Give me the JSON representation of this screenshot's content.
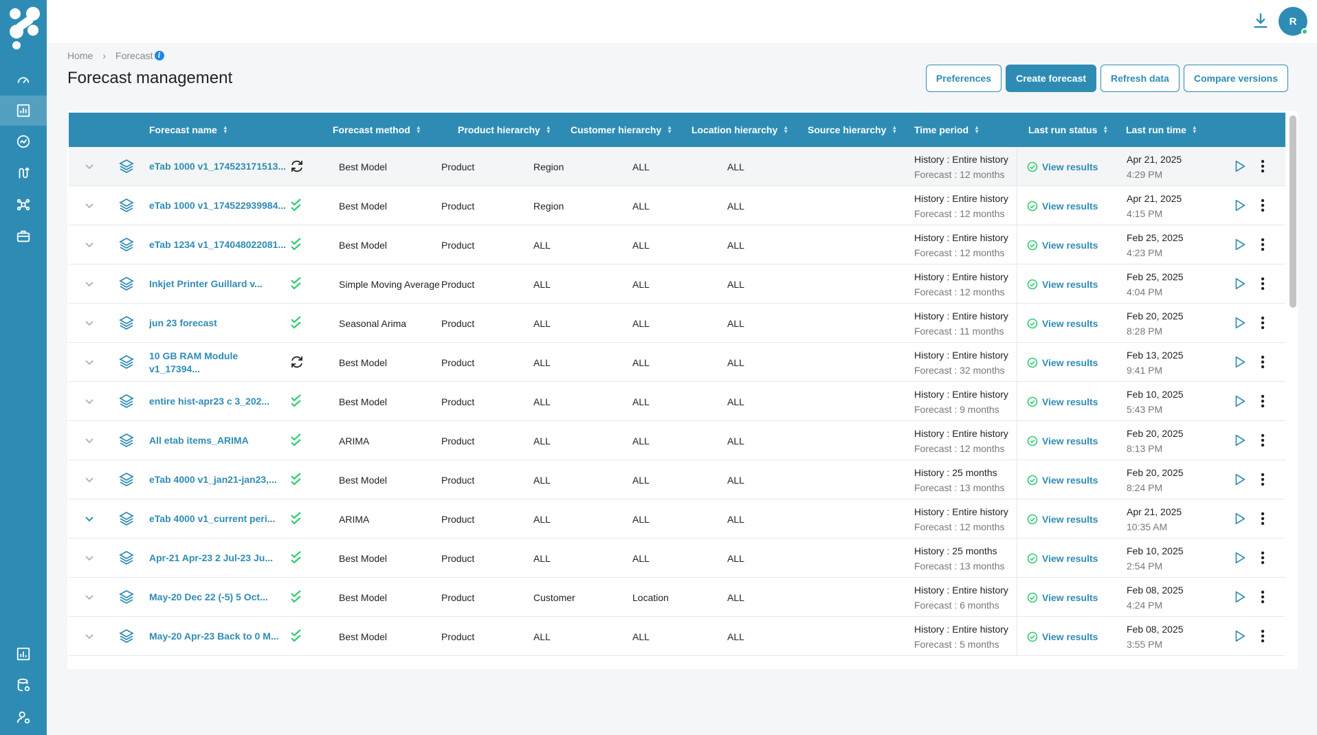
{
  "colors": {
    "brand": "#2e8cb4",
    "success": "#2ecc71",
    "info": "#1e88e5"
  },
  "sidebar": {
    "items": [
      {
        "icon": "gauge-icon"
      },
      {
        "icon": "bar-chart-icon"
      },
      {
        "icon": "trend-icon"
      },
      {
        "icon": "route-icon"
      },
      {
        "icon": "network-icon"
      },
      {
        "icon": "briefcase-icon"
      },
      {
        "icon": "report-icon"
      },
      {
        "icon": "database-settings-icon"
      },
      {
        "icon": "user-settings-icon"
      }
    ]
  },
  "header": {
    "avatar_initial": "R"
  },
  "breadcrumb": {
    "home": "Home",
    "current": "Forecast",
    "info": "i"
  },
  "page": {
    "title": "Forecast management"
  },
  "actions": {
    "preferences": "Preferences",
    "create": "Create forecast",
    "refresh": "Refresh data",
    "compare": "Compare versions"
  },
  "table": {
    "columns": {
      "name": "Forecast name",
      "method": "Forecast method",
      "product": "Product hierarchy",
      "customer": "Customer hierarchy",
      "location": "Location hierarchy",
      "source": "Source hierarchy",
      "time": "Time period",
      "status": "Last run status",
      "runtime": "Last run time"
    },
    "rows": [
      {
        "name": "eTab 1000 v1_174523171513...",
        "sync": "refresh",
        "method": "Best Model",
        "product": "Product",
        "customer": "Region",
        "location": "ALL",
        "source": "ALL",
        "history": "History : Entire history",
        "forecast": "Forecast : 12 months",
        "status": "View results",
        "date": "Apr 21, 2025",
        "time": "4:29 PM",
        "expanded": false
      },
      {
        "name": "eTab 1000 v1_174522939984...",
        "sync": "done",
        "method": "Best Model",
        "product": "Product",
        "customer": "Region",
        "location": "ALL",
        "source": "ALL",
        "history": "History : Entire history",
        "forecast": "Forecast : 12 months",
        "status": "View results",
        "date": "Apr 21, 2025",
        "time": "4:15 PM",
        "expanded": false
      },
      {
        "name": "eTab 1234 v1_174048022081...",
        "sync": "done",
        "method": "Best Model",
        "product": "Product",
        "customer": "ALL",
        "location": "ALL",
        "source": "ALL",
        "history": "History : Entire history",
        "forecast": "Forecast : 12 months",
        "status": "View results",
        "date": "Feb 25, 2025",
        "time": "4:23 PM",
        "expanded": false
      },
      {
        "name": "Inkjet Printer Guillard v...",
        "sync": "done",
        "method": "Simple Moving Average",
        "product": "Product",
        "customer": "ALL",
        "location": "ALL",
        "source": "ALL",
        "history": "History : Entire history",
        "forecast": "Forecast : 12 months",
        "status": "View results",
        "date": "Feb 25, 2025",
        "time": "4:04 PM",
        "expanded": false
      },
      {
        "name": "jun 23 forecast",
        "sync": "done",
        "method": "Seasonal Arima",
        "product": "Product",
        "customer": "ALL",
        "location": "ALL",
        "source": "ALL",
        "history": "History : Entire history",
        "forecast": "Forecast : 11 months",
        "status": "View results",
        "date": "Feb 20, 2025",
        "time": "8:28 PM",
        "expanded": false
      },
      {
        "name": "10 GB RAM Module v1_17394...",
        "sync": "refresh",
        "method": "Best Model",
        "product": "Product",
        "customer": "ALL",
        "location": "ALL",
        "source": "ALL",
        "history": "History : Entire history",
        "forecast": "Forecast : 32 months",
        "status": "View results",
        "date": "Feb 13, 2025",
        "time": "9:41 PM",
        "expanded": false
      },
      {
        "name": "entire hist-apr23 c 3_202...",
        "sync": "done",
        "method": "Best Model",
        "product": "Product",
        "customer": "ALL",
        "location": "ALL",
        "source": "ALL",
        "history": "History : Entire history",
        "forecast": "Forecast : 9 months",
        "status": "View results",
        "date": "Feb 10, 2025",
        "time": "5:43 PM",
        "expanded": false
      },
      {
        "name": "All etab items_ARIMA",
        "sync": "done",
        "method": "ARIMA",
        "product": "Product",
        "customer": "ALL",
        "location": "ALL",
        "source": "ALL",
        "history": "History : Entire history",
        "forecast": "Forecast : 12 months",
        "status": "View results",
        "date": "Feb 20, 2025",
        "time": "8:13 PM",
        "expanded": false
      },
      {
        "name": "eTab 4000 v1_jan21-jan23,...",
        "sync": "done",
        "method": "Best Model",
        "product": "Product",
        "customer": "ALL",
        "location": "ALL",
        "source": "ALL",
        "history": "History : 25 months",
        "forecast": "Forecast : 13 months",
        "status": "View results",
        "date": "Feb 20, 2025",
        "time": "8:24 PM",
        "expanded": false
      },
      {
        "name": "eTab 4000 v1_current peri...",
        "sync": "done",
        "method": "ARIMA",
        "product": "Product",
        "customer": "ALL",
        "location": "ALL",
        "source": "ALL",
        "history": "History : Entire history",
        "forecast": "Forecast : 12 months",
        "status": "View results",
        "date": "Apr 21, 2025",
        "time": "10:35 AM",
        "expanded": true
      },
      {
        "name": "Apr-21    Apr-23    2    Jul-23 Ju...",
        "sync": "done",
        "method": "Best Model",
        "product": "Product",
        "customer": "ALL",
        "location": "ALL",
        "source": "ALL",
        "history": "History : 25 months",
        "forecast": "Forecast : 13 months",
        "status": "View results",
        "date": "Feb 10, 2025",
        "time": "2:54 PM",
        "expanded": false
      },
      {
        "name": "May-20    Dec 22 (-5)    5 Oct...",
        "sync": "done",
        "method": "Best Model",
        "product": "Product",
        "customer": "Customer",
        "location": "Location",
        "source": "ALL",
        "history": "History : Entire history",
        "forecast": "Forecast : 6 months",
        "status": "View results",
        "date": "Feb 08, 2025",
        "time": "4:24 PM",
        "expanded": false
      },
      {
        "name": "May-20    Apr-23    Back to 0 M...",
        "sync": "done",
        "method": "Best Model",
        "product": "Product",
        "customer": "ALL",
        "location": "ALL",
        "source": "ALL",
        "history": "History : Entire history",
        "forecast": "Forecast : 5 months",
        "status": "View results",
        "date": "Feb 08, 2025",
        "time": "3:55 PM",
        "expanded": false
      }
    ]
  }
}
